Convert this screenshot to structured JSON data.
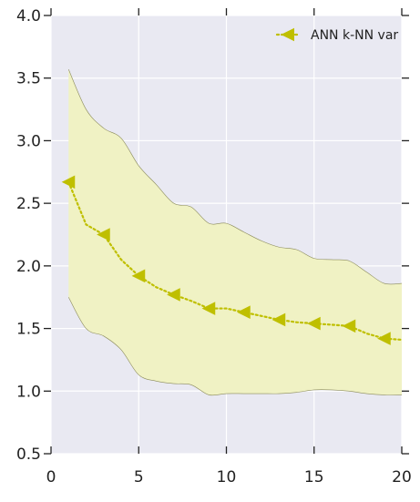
{
  "chart_data": {
    "type": "line",
    "title": "",
    "xlabel": "",
    "ylabel": "",
    "xlim": [
      0,
      20
    ],
    "ylim": [
      0.5,
      4.0
    ],
    "xticks": [
      0,
      5,
      10,
      15,
      20
    ],
    "xtick_labels": [
      "0",
      "5",
      "10",
      "15",
      "20"
    ],
    "yticks": [
      0.5,
      1.0,
      1.5,
      2.0,
      2.5,
      3.0,
      3.5,
      4.0
    ],
    "ytick_labels": [
      "0.5",
      "1.0",
      "1.5",
      "2.0",
      "2.5",
      "3.0",
      "3.5",
      "4.0"
    ],
    "grid": true,
    "legend_position": "top-right",
    "colors": {
      "background": "#e9e9f2",
      "grid": "#ffffff",
      "line": "#bfbf00",
      "band_fill": "#f0f2c4",
      "band_edge": "#8a8a5a",
      "text": "#222222"
    },
    "series": [
      {
        "name": "ANN k-NN var",
        "marker": "triangle-left",
        "line_style": "dotted",
        "x": [
          1,
          2,
          3,
          4,
          5,
          6,
          7,
          8,
          9,
          10,
          11,
          12,
          13,
          14,
          15,
          16,
          17,
          18,
          19,
          20
        ],
        "values": [
          2.67,
          2.33,
          2.25,
          2.05,
          1.92,
          1.83,
          1.77,
          1.72,
          1.66,
          1.66,
          1.63,
          1.6,
          1.57,
          1.55,
          1.54,
          1.53,
          1.52,
          1.46,
          1.42,
          1.41
        ],
        "band_upper": [
          3.57,
          3.25,
          3.1,
          3.02,
          2.8,
          2.65,
          2.5,
          2.47,
          2.34,
          2.34,
          2.27,
          2.2,
          2.15,
          2.13,
          2.06,
          2.05,
          2.04,
          1.95,
          1.86,
          1.86
        ],
        "band_lower": [
          1.75,
          1.5,
          1.44,
          1.33,
          1.13,
          1.08,
          1.06,
          1.05,
          0.97,
          0.98,
          0.98,
          0.98,
          0.98,
          0.99,
          1.01,
          1.01,
          1.0,
          0.98,
          0.97,
          0.97
        ],
        "marker_every": [
          1,
          3,
          5,
          7,
          9,
          11,
          13,
          15,
          17,
          19
        ]
      }
    ]
  }
}
